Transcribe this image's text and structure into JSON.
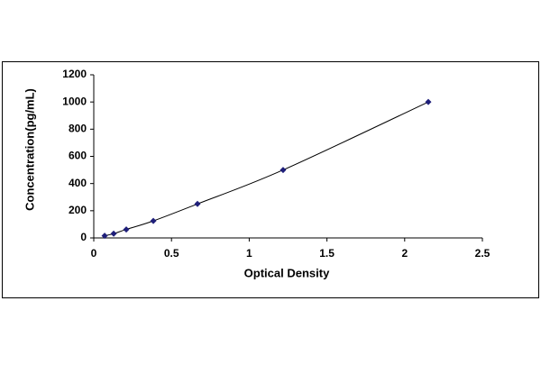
{
  "chart_data": {
    "type": "scatter",
    "x_label": "Optical Density",
    "y_label": "Concentration(pg/mL)",
    "x": [
      0.07,
      0.128,
      0.209,
      0.383,
      0.667,
      1.218,
      2.152
    ],
    "series": [
      {
        "color": "#1f1f7a",
        "values": [
          15.6,
          31.2,
          62.5,
          125,
          250,
          500,
          1000
        ]
      }
    ],
    "line": true,
    "grid": false,
    "xlim": [
      0,
      2.5
    ],
    "xticks": [
      0,
      0.5,
      1,
      1.5,
      2,
      2.5
    ],
    "ylim": [
      0,
      1200
    ],
    "yticks": [
      0,
      200,
      400,
      600,
      800,
      1000,
      1200
    ]
  }
}
